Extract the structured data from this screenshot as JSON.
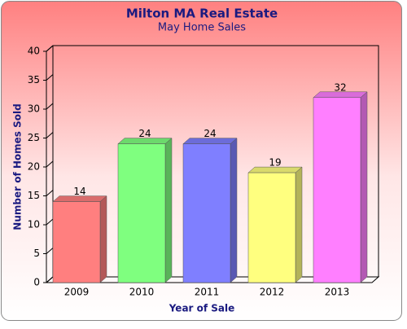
{
  "chart_data": {
    "type": "bar3d",
    "title": "Milton MA Real Estate",
    "subtitle": "May Home Sales",
    "x_label": "Year of Sale",
    "y_label": "Number of Homes Sold",
    "categories": [
      "2009",
      "2010",
      "2011",
      "2012",
      "2013"
    ],
    "values": [
      14,
      24,
      24,
      19,
      32
    ],
    "colors": [
      "#ff7f7f",
      "#7fff7f",
      "#7f7fff",
      "#ffff7f",
      "#ff7fff"
    ],
    "ylim": [
      0,
      40
    ],
    "yticks": [
      0,
      5,
      10,
      15,
      20,
      25,
      30,
      35,
      40
    ],
    "grid": false
  }
}
